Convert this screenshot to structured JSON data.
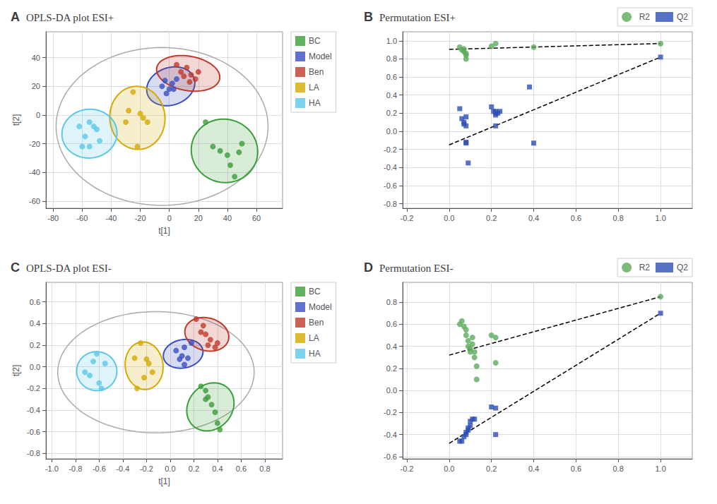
{
  "chart_data": [
    {
      "type": "scatter",
      "annotations": [
        "A"
      ],
      "title": "OPLS-DA plot ESI+",
      "xlabel": "t[1]",
      "ylabel": "t[2]",
      "xlim": [
        -85,
        78
      ],
      "ylim": [
        -65,
        58
      ],
      "xticks": [
        -80,
        -60,
        -40,
        -20,
        0,
        20,
        40,
        60
      ],
      "yticks": [
        -60,
        -40,
        -20,
        0,
        20,
        40
      ],
      "grid": true,
      "legend": "upper right",
      "outer_ellipse": {
        "cx": -5,
        "cy": -8,
        "rx": 73,
        "ry": 55,
        "angle": 0
      },
      "series": [
        {
          "name": "BC",
          "color": "#3a9e3a",
          "marker": "circle",
          "x": [
            25,
            30,
            35,
            40,
            42,
            45,
            48,
            50
          ],
          "values": [
            -5,
            -22,
            -25,
            -28,
            -35,
            -43,
            -26,
            -20
          ],
          "ellipse": {
            "cx": 38,
            "cy": -25,
            "rx": 23,
            "ry": 22,
            "angle": -20
          }
        },
        {
          "name": "Model",
          "color": "#3b4ec0",
          "marker": "circle",
          "x": [
            -5,
            -2,
            0,
            2,
            5,
            3,
            -3
          ],
          "values": [
            20,
            15,
            18,
            22,
            25,
            18,
            24
          ],
          "ellipse": {
            "cx": 1,
            "cy": 20,
            "rx": 17,
            "ry": 13,
            "angle": 20
          }
        },
        {
          "name": "Ben",
          "color": "#c0392b",
          "marker": "circle",
          "x": [
            5,
            8,
            12,
            15,
            18,
            20,
            10,
            14
          ],
          "values": [
            35,
            30,
            33,
            28,
            25,
            30,
            27,
            23
          ],
          "ellipse": {
            "cx": 13,
            "cy": 29,
            "rx": 22,
            "ry": 12,
            "angle": -10
          }
        },
        {
          "name": "LA",
          "color": "#d4aa00",
          "marker": "circle",
          "x": [
            -25,
            -20,
            -18,
            -15,
            -22,
            -30,
            -28
          ],
          "values": [
            16,
            1,
            -2,
            -5,
            -22,
            -5,
            3
          ],
          "ellipse": {
            "cx": -22,
            "cy": -2,
            "rx": 19,
            "ry": 22,
            "angle": 5
          }
        },
        {
          "name": "HA",
          "color": "#5bc8e8",
          "marker": "circle",
          "x": [
            -52,
            -58,
            -60,
            -55,
            -50,
            -48,
            -62,
            -55
          ],
          "values": [
            -8,
            -15,
            -22,
            -22,
            -10,
            -18,
            -8,
            -5
          ],
          "ellipse": {
            "cx": -55,
            "cy": -13,
            "rx": 19,
            "ry": 17,
            "angle": 5
          }
        }
      ]
    },
    {
      "type": "scatter",
      "annotations": [
        "B"
      ],
      "title": "Permutation ESI+",
      "xlim": [
        -0.22,
        1.15
      ],
      "ylim": [
        -0.85,
        1.1
      ],
      "xticks": [
        -0.2,
        {
          "value": 0.0,
          "label": "0.0"
        },
        0.2,
        0.4,
        0.6,
        0.8,
        {
          "value": 1.0,
          "label": "1.0"
        }
      ],
      "yticks": [
        -0.8,
        -0.6,
        -0.4,
        -0.2,
        {
          "value": 0.0,
          "label": "0.0"
        },
        0.2,
        0.4,
        0.6,
        0.8,
        {
          "value": 1.0,
          "label": "1.0"
        }
      ],
      "grid": true,
      "legend": "upper right",
      "series": [
        {
          "name": "R2",
          "color": "#5baa5b",
          "marker": "circle",
          "x": [
            0.05,
            0.06,
            0.07,
            0.07,
            0.08,
            0.08,
            0.08,
            0.2,
            0.22,
            0.4,
            1.0
          ],
          "values": [
            0.93,
            0.9,
            0.91,
            0.88,
            0.86,
            0.84,
            0.8,
            0.94,
            0.97,
            0.93,
            0.97
          ],
          "trend_line": {
            "x": [
              0.0,
              1.0
            ],
            "values": [
              0.905,
              0.97
            ],
            "color": "#000000",
            "line_style": "dashed"
          }
        },
        {
          "name": "Q2",
          "color": "#2d4eb5",
          "marker": "square",
          "x": [
            0.05,
            0.06,
            0.07,
            0.07,
            0.08,
            0.08,
            0.08,
            0.08,
            0.09,
            0.2,
            0.21,
            0.22,
            0.22,
            0.22,
            0.22,
            0.23,
            0.24,
            0.38,
            0.4,
            1.0
          ],
          "values": [
            0.25,
            0.14,
            0.1,
            0.08,
            0.16,
            0.06,
            -0.12,
            -0.13,
            -0.35,
            0.27,
            0.22,
            0.22,
            0.2,
            0.18,
            0.06,
            0.2,
            0.22,
            0.49,
            -0.13,
            0.82
          ],
          "trend_line": {
            "x": [
              0.0,
              1.0
            ],
            "values": [
              -0.15,
              0.82
            ],
            "color": "#000000",
            "line_style": "dashed"
          }
        }
      ]
    },
    {
      "type": "scatter",
      "annotations": [
        "C"
      ],
      "title": "OPLS-DA plot ESI-",
      "xlabel": "t[1]",
      "ylabel": "t[2]",
      "xlim": [
        -1.05,
        0.95
      ],
      "ylim": [
        -0.85,
        0.78
      ],
      "xticks": [
        {
          "value": -1.0,
          "label": "-1.0"
        },
        -0.8,
        -0.6,
        -0.4,
        -0.2,
        {
          "value": 0.0,
          "label": "0.0"
        },
        0.2,
        0.4,
        0.6,
        0.8
      ],
      "yticks": [
        -0.8,
        -0.6,
        -0.4,
        -0.2,
        {
          "value": 0.0,
          "label": "0.0"
        },
        0.2,
        0.4,
        0.6
      ],
      "grid": true,
      "legend": "upper right",
      "outer_ellipse": {
        "cx": -0.12,
        "cy": -0.05,
        "rx": 0.83,
        "ry": 0.56,
        "angle": 0
      },
      "series": [
        {
          "name": "BC",
          "color": "#3a9e3a",
          "marker": "circle",
          "x": [
            0.26,
            0.3,
            0.32,
            0.35,
            0.38,
            0.4,
            0.42,
            0.3
          ],
          "values": [
            -0.18,
            -0.22,
            -0.28,
            -0.35,
            -0.42,
            -0.52,
            -0.58,
            -0.3
          ],
          "ellipse": {
            "cx": 0.34,
            "cy": -0.37,
            "rx": 0.19,
            "ry": 0.23,
            "angle": -28
          }
        },
        {
          "name": "Model",
          "color": "#3b4ec0",
          "marker": "circle",
          "x": [
            0.05,
            0.08,
            0.1,
            0.12,
            0.15,
            0.18,
            0.12
          ],
          "values": [
            0.15,
            0.07,
            0.1,
            0.18,
            0.08,
            0.22,
            0.02
          ],
          "ellipse": {
            "cx": 0.11,
            "cy": 0.12,
            "rx": 0.17,
            "ry": 0.13,
            "angle": 15
          }
        },
        {
          "name": "Ben",
          "color": "#c0392b",
          "marker": "circle",
          "x": [
            0.22,
            0.28,
            0.3,
            0.34,
            0.38,
            0.32,
            0.26,
            0.4
          ],
          "values": [
            0.44,
            0.38,
            0.3,
            0.25,
            0.18,
            0.2,
            0.32,
            0.22
          ],
          "ellipse": {
            "cx": 0.31,
            "cy": 0.3,
            "rx": 0.19,
            "ry": 0.15,
            "angle": -20
          }
        },
        {
          "name": "LA",
          "color": "#d4aa00",
          "marker": "circle",
          "x": [
            -0.25,
            -0.2,
            -0.18,
            -0.15,
            -0.22,
            -0.3,
            -0.28
          ],
          "values": [
            0.22,
            0.07,
            0.03,
            -0.05,
            -0.1,
            0.08,
            -0.2
          ],
          "ellipse": {
            "cx": -0.22,
            "cy": 0.01,
            "rx": 0.16,
            "ry": 0.22,
            "angle": 5
          }
        },
        {
          "name": "HA",
          "color": "#5bc8e8",
          "marker": "circle",
          "x": [
            -0.62,
            -0.65,
            -0.68,
            -0.6,
            -0.58,
            -0.55,
            -0.72
          ],
          "values": [
            0.12,
            0.05,
            -0.08,
            -0.15,
            -0.2,
            0.03,
            -0.05
          ],
          "ellipse": {
            "cx": -0.62,
            "cy": -0.04,
            "rx": 0.17,
            "ry": 0.18,
            "angle": 5
          }
        }
      ]
    },
    {
      "type": "scatter",
      "annotations": [
        "D"
      ],
      "title": "Permutation ESI-",
      "xlim": [
        -0.22,
        1.15
      ],
      "ylim": [
        -0.62,
        0.98
      ],
      "xticks": [
        -0.2,
        {
          "value": 0.0,
          "label": "0.0"
        },
        0.2,
        0.4,
        0.6,
        0.8,
        {
          "value": 1.0,
          "label": "1.0"
        }
      ],
      "yticks": [
        -0.6,
        -0.4,
        -0.2,
        {
          "value": 0.0,
          "label": "0.0"
        },
        0.2,
        0.4,
        0.6,
        0.8
      ],
      "grid": true,
      "legend": "upper right",
      "series": [
        {
          "name": "R2",
          "color": "#5baa5b",
          "marker": "circle",
          "x": [
            0.05,
            0.06,
            0.07,
            0.08,
            0.08,
            0.09,
            0.09,
            0.1,
            0.1,
            0.11,
            0.11,
            0.12,
            0.12,
            0.13,
            0.13,
            0.2,
            0.22,
            0.22,
            1.0
          ],
          "values": [
            0.6,
            0.63,
            0.58,
            0.55,
            0.5,
            0.45,
            0.4,
            0.38,
            0.35,
            0.42,
            0.48,
            0.35,
            0.3,
            0.22,
            0.1,
            0.5,
            0.48,
            0.25,
            0.85
          ],
          "trend_line": {
            "x": [
              0.0,
              1.0
            ],
            "values": [
              0.32,
              0.85
            ],
            "color": "#000000",
            "line_style": "dashed"
          }
        },
        {
          "name": "Q2",
          "color": "#2d4eb5",
          "marker": "square",
          "x": [
            0.05,
            0.06,
            0.07,
            0.08,
            0.08,
            0.09,
            0.09,
            0.1,
            0.1,
            0.11,
            0.12,
            0.2,
            0.22,
            0.22,
            1.0
          ],
          "values": [
            -0.46,
            -0.46,
            -0.42,
            -0.4,
            -0.38,
            -0.36,
            -0.34,
            -0.32,
            -0.28,
            -0.26,
            -0.26,
            -0.15,
            -0.16,
            -0.4,
            0.7
          ],
          "trend_line": {
            "x": [
              0.0,
              1.0
            ],
            "values": [
              -0.48,
              0.7
            ],
            "color": "#000000",
            "line_style": "dashed"
          }
        }
      ]
    }
  ]
}
